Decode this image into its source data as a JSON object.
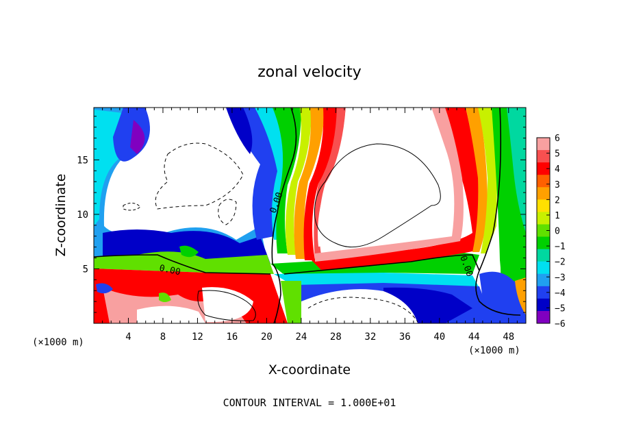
{
  "chart_data": {
    "type": "heatmap",
    "title": "zonal velocity",
    "xlabel": "X-coordinate",
    "ylabel": "Z-coordinate",
    "x_unit_left": "(×1000 m)",
    "x_unit_right": "(×1000 m)",
    "x_ticks": [
      "4",
      "8",
      "12",
      "16",
      "20",
      "24",
      "28",
      "32",
      "36",
      "40",
      "44",
      "48"
    ],
    "y_ticks": [
      "5",
      "10",
      "15"
    ],
    "xlim": [
      0,
      50
    ],
    "ylim": [
      0,
      19.8
    ],
    "contour_labels": [
      "0.00",
      "0.00",
      "0.00",
      "0.00"
    ],
    "colorbar": {
      "ticks": [
        "6",
        "5",
        "4",
        "3",
        "2",
        "1",
        "0",
        "−1",
        "−2",
        "−3",
        "−4",
        "−5",
        "−6"
      ],
      "range": [
        -6,
        6
      ],
      "colors": [
        "#f8a0a0",
        "#f85050",
        "#ff0000",
        "#ff6000",
        "#ffa000",
        "#ffe000",
        "#c8f000",
        "#60e000",
        "#00d000",
        "#00d8a0",
        "#00e0f0",
        "#20a0f0",
        "#2040f0",
        "#0000c8",
        "#8000c0"
      ]
    },
    "contour_interval_text": "CONTOUR INTERVAL = 1.000E+01"
  }
}
